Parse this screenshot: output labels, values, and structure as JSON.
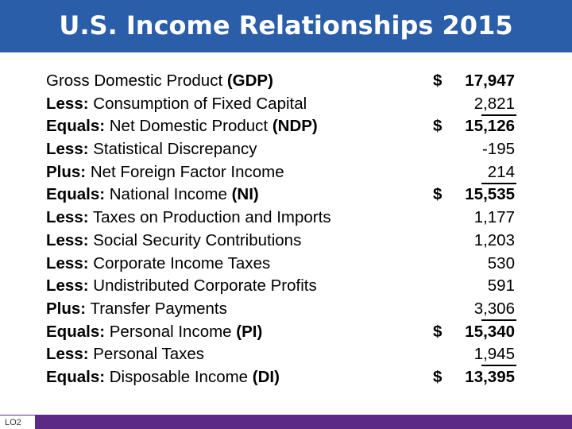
{
  "title": "U.S. Income Relationships 2015",
  "footer": {
    "tag": "LO2"
  },
  "rows": [
    {
      "prefix": "",
      "label": "Gross Domestic Product ",
      "abbr": "(GDP)",
      "currency": "$",
      "value": "17,947",
      "bold_value": true,
      "underline": false
    },
    {
      "prefix": "Less:",
      "label": " Consumption of Fixed Capital",
      "abbr": "",
      "currency": "",
      "value": "2,821",
      "bold_value": false,
      "underline": true
    },
    {
      "prefix": "Equals:",
      "label": " Net Domestic Product ",
      "abbr": "(NDP)",
      "currency": "$",
      "value": "15,126",
      "bold_value": true,
      "underline": false
    },
    {
      "prefix": "Less:",
      "label": " Statistical Discrepancy",
      "abbr": "",
      "currency": "",
      "value": "-195",
      "bold_value": false,
      "underline": false
    },
    {
      "prefix": "Plus:",
      "label": " Net Foreign Factor Income",
      "abbr": "",
      "currency": "",
      "value": "214",
      "bold_value": false,
      "underline": true
    },
    {
      "prefix": "Equals:",
      "label": " National Income ",
      "abbr": "(NI)",
      "currency": "$",
      "value": "15,535",
      "bold_value": true,
      "underline": false
    },
    {
      "prefix": "Less:",
      "label": " Taxes on Production and Imports",
      "abbr": "",
      "currency": "",
      "value": "1,177",
      "bold_value": false,
      "underline": false
    },
    {
      "prefix": "Less:",
      "label": " Social Security Contributions",
      "abbr": "",
      "currency": "",
      "value": "1,203",
      "bold_value": false,
      "underline": false
    },
    {
      "prefix": "Less:",
      "label": " Corporate Income Taxes",
      "abbr": "",
      "currency": "",
      "value": "530",
      "bold_value": false,
      "underline": false
    },
    {
      "prefix": "Less:",
      "label": " Undistributed Corporate Profits",
      "abbr": "",
      "currency": "",
      "value": "591",
      "bold_value": false,
      "underline": false
    },
    {
      "prefix": "Plus:",
      "label": " Transfer Payments",
      "abbr": "",
      "currency": "",
      "value": "3,306",
      "bold_value": false,
      "underline": true
    },
    {
      "prefix": "Equals:",
      "label": " Personal Income ",
      "abbr": "(PI)",
      "currency": "$",
      "value": "15,340",
      "bold_value": true,
      "underline": false
    },
    {
      "prefix": "Less:",
      "label": " Personal Taxes",
      "abbr": "",
      "currency": "",
      "value": "1,945",
      "bold_value": false,
      "underline": true
    },
    {
      "prefix": "Equals:",
      "label": " Disposable Income ",
      "abbr": "(DI)",
      "currency": "$",
      "value": "13,395",
      "bold_value": true,
      "underline": false
    }
  ]
}
